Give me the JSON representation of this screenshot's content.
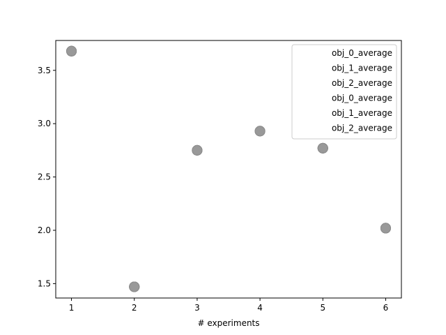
{
  "chart_data": {
    "type": "scatter",
    "xlabel": "# experiments",
    "ylabel": "",
    "title": "",
    "xlim": [
      0.75,
      6.25
    ],
    "ylim": [
      1.365,
      3.78
    ],
    "xticks": [
      1,
      2,
      3,
      4,
      5,
      6
    ],
    "xtick_labels": [
      "1",
      "2",
      "3",
      "4",
      "5",
      "6"
    ],
    "yticks": [
      1.5,
      2.0,
      2.5,
      3.0,
      3.5
    ],
    "ytick_labels": [
      "1.5",
      "2.0",
      "2.5",
      "3.0",
      "3.5"
    ],
    "grid": false,
    "legend_position": "upper right",
    "marker_color": "#999999",
    "marker_edge_color": "#8c8c8c",
    "series": [
      {
        "name": "obj_0_average",
        "x": [
          1,
          2,
          3,
          4,
          5,
          6
        ],
        "y": [
          3.68,
          1.47,
          2.75,
          2.93,
          2.77,
          2.02
        ]
      },
      {
        "name": "obj_1_average",
        "x": [
          1,
          2,
          3,
          4,
          5,
          6
        ],
        "y": [
          3.68,
          1.47,
          2.75,
          2.93,
          2.77,
          2.02
        ]
      },
      {
        "name": "obj_2_average",
        "x": [
          1,
          2,
          3,
          4,
          5,
          6
        ],
        "y": [
          3.68,
          1.47,
          2.75,
          2.93,
          2.77,
          2.02
        ]
      },
      {
        "name": "obj_0_average",
        "x": [
          1,
          2,
          3,
          4,
          5,
          6
        ],
        "y": [
          3.68,
          1.47,
          2.75,
          2.93,
          2.77,
          2.02
        ]
      },
      {
        "name": "obj_1_average",
        "x": [
          1,
          2,
          3,
          4,
          5,
          6
        ],
        "y": [
          3.68,
          1.47,
          2.75,
          2.93,
          2.77,
          2.02
        ]
      },
      {
        "name": "obj_2_average",
        "x": [
          1,
          2,
          3,
          4,
          5,
          6
        ],
        "y": [
          3.68,
          1.47,
          2.75,
          2.93,
          2.77,
          2.02
        ]
      }
    ]
  }
}
